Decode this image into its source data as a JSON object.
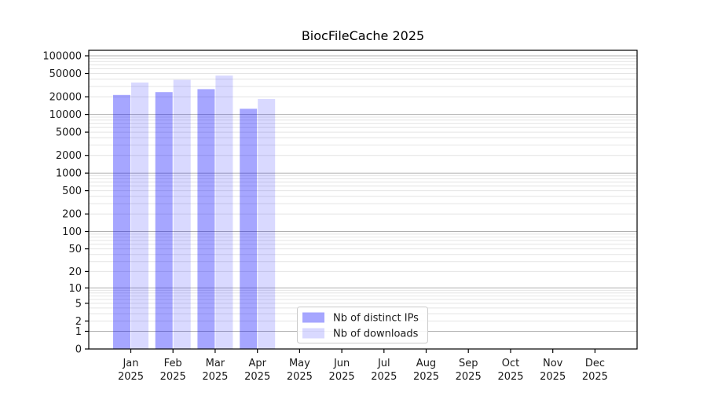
{
  "chart_data": {
    "type": "bar",
    "title": "BiocFileCache 2025",
    "categories": [
      "Jan 2025",
      "Feb 2025",
      "Mar 2025",
      "Apr 2025",
      "May 2025",
      "Jun 2025",
      "Jul 2025",
      "Aug 2025",
      "Sep 2025",
      "Oct 2025",
      "Nov 2025",
      "Dec 2025"
    ],
    "series": [
      {
        "name": "Nb of distinct IPs",
        "color": "rgba(0,0,255,0.35)",
        "values": [
          21500,
          24000,
          27000,
          12500,
          null,
          null,
          null,
          null,
          null,
          null,
          null,
          null
        ]
      },
      {
        "name": "Nb of downloads",
        "color": "rgba(0,0,255,0.15)",
        "values": [
          35000,
          39000,
          46000,
          18300,
          null,
          null,
          null,
          null,
          null,
          null,
          null,
          null
        ]
      }
    ],
    "yscale": "log10(value+1)",
    "ylim": [
      0,
      124000
    ],
    "yticks": [
      0,
      1,
      2,
      5,
      10,
      20,
      50,
      100,
      200,
      500,
      1000,
      2000,
      5000,
      10000,
      20000,
      50000,
      100000
    ],
    "grid": true,
    "legend_position": "inside bottom, left of center",
    "colors": {
      "bar_distinct_ips": "rgba(0,0,255,0.35)",
      "bar_downloads": "rgba(0,0,255,0.15)",
      "major_grid": "#b0b0b0",
      "minor_grid": "#e4e4e4",
      "spine": "#000000",
      "legend_border": "#cccccc",
      "background": "#ffffff"
    }
  }
}
